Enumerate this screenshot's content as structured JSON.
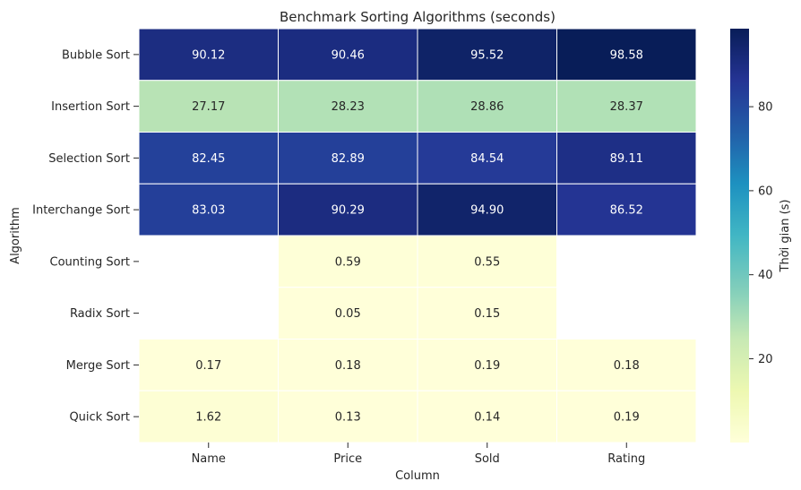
{
  "chart_data": {
    "type": "heatmap",
    "title": "Benchmark Sorting Algorithms (seconds)",
    "xlabel": "Column",
    "ylabel": "Algorithm",
    "x_categories": [
      "Name",
      "Price",
      "Sold",
      "Rating"
    ],
    "y_categories": [
      "Bubble Sort",
      "Insertion Sort",
      "Selection Sort",
      "Interchange Sort",
      "Counting Sort",
      "Radix Sort",
      "Merge Sort",
      "Quick Sort"
    ],
    "values": [
      [
        90.12,
        90.46,
        95.52,
        98.58
      ],
      [
        27.17,
        28.23,
        28.86,
        28.37
      ],
      [
        82.45,
        82.89,
        84.54,
        89.11
      ],
      [
        83.03,
        90.29,
        94.9,
        86.52
      ],
      [
        null,
        0.59,
        0.55,
        null
      ],
      [
        null,
        0.05,
        0.15,
        null
      ],
      [
        0.17,
        0.18,
        0.19,
        0.18
      ],
      [
        1.62,
        0.13,
        0.14,
        0.19
      ]
    ],
    "colorbar": {
      "label": "Thời gian (s)",
      "colormap": "YlGnBu",
      "min": 0.05,
      "max": 98.58,
      "ticks": [
        20,
        40,
        60,
        80
      ]
    }
  }
}
